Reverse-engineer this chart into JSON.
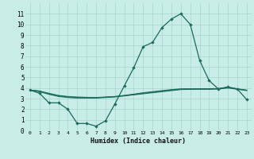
{
  "xlabel": "Humidex (Indice chaleur)",
  "xlim": [
    -0.5,
    23.5
  ],
  "ylim": [
    0,
    12
  ],
  "yticks": [
    0,
    1,
    2,
    3,
    4,
    5,
    6,
    7,
    8,
    9,
    10,
    11
  ],
  "xticks": [
    0,
    1,
    2,
    3,
    4,
    5,
    6,
    7,
    8,
    9,
    10,
    11,
    12,
    13,
    14,
    15,
    16,
    17,
    18,
    19,
    20,
    21,
    22,
    23
  ],
  "bg_color": "#c8ece6",
  "grid_color": "#a8d4cc",
  "line_color": "#1a6b5a",
  "line1_x": [
    0,
    1,
    2,
    3,
    4,
    5,
    6,
    7,
    8,
    9,
    10,
    11,
    12,
    13,
    14,
    15,
    16,
    17,
    18,
    19,
    20,
    21,
    22,
    23
  ],
  "line1_y": [
    3.8,
    3.5,
    2.6,
    2.6,
    2.0,
    0.65,
    0.65,
    0.4,
    0.9,
    2.5,
    4.2,
    5.9,
    7.9,
    8.3,
    9.7,
    10.5,
    11.0,
    10.0,
    6.6,
    4.7,
    3.9,
    4.1,
    3.9,
    2.9
  ],
  "line2_x": [
    0,
    1,
    2,
    3,
    4,
    5,
    6,
    7,
    8,
    9,
    10,
    11,
    12,
    13,
    14,
    15,
    16,
    17,
    18,
    19,
    20,
    21,
    22,
    23
  ],
  "line2_y": [
    3.8,
    3.65,
    3.4,
    3.2,
    3.1,
    3.05,
    3.05,
    3.05,
    3.1,
    3.15,
    3.25,
    3.35,
    3.45,
    3.55,
    3.65,
    3.75,
    3.85,
    3.87,
    3.88,
    3.88,
    3.9,
    4.0,
    3.88,
    3.75
  ],
  "line3_x": [
    0,
    1,
    2,
    3,
    4,
    5,
    6,
    7,
    8,
    9,
    10,
    11,
    12,
    13,
    14,
    15,
    16,
    17,
    18,
    19,
    20,
    21,
    22,
    23
  ],
  "line3_y": [
    3.8,
    3.7,
    3.5,
    3.3,
    3.2,
    3.15,
    3.12,
    3.1,
    3.15,
    3.2,
    3.3,
    3.42,
    3.55,
    3.65,
    3.75,
    3.85,
    3.92,
    3.93,
    3.93,
    3.93,
    3.95,
    4.08,
    3.93,
    3.8
  ],
  "line4_x": [
    0,
    1,
    2,
    3,
    4,
    5,
    6,
    7,
    8,
    9,
    10,
    11,
    12,
    13,
    14,
    15,
    16,
    17,
    18,
    19,
    20,
    21,
    22,
    23
  ],
  "line4_y": [
    3.8,
    3.72,
    3.45,
    3.27,
    3.15,
    3.1,
    3.09,
    3.08,
    3.13,
    3.18,
    3.28,
    3.39,
    3.5,
    3.6,
    3.7,
    3.8,
    3.89,
    3.9,
    3.9,
    3.9,
    3.93,
    4.04,
    3.9,
    3.78
  ]
}
